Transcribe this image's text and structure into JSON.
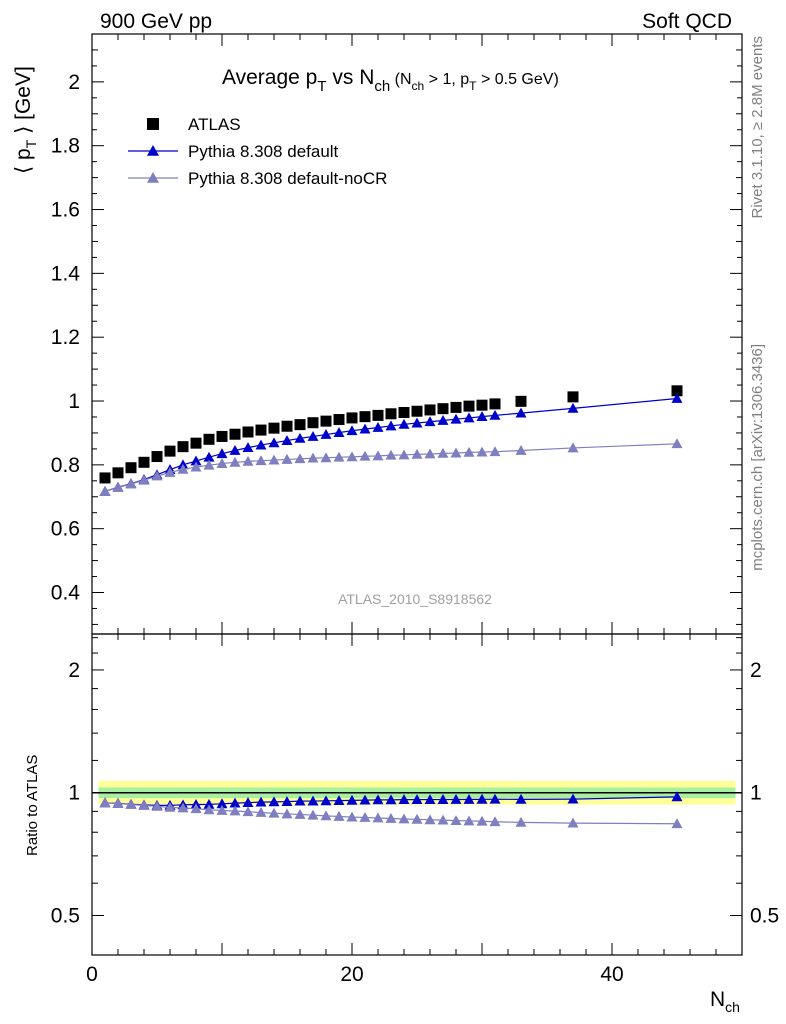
{
  "header": {
    "left": "900 GeV pp",
    "right": "Soft QCD"
  },
  "side_labels": {
    "upper": "Rivet 3.1.10, ≥ 2.8M events",
    "lower": "mcplots.cern.ch [arXiv:1306.3436]"
  },
  "chart_data": {
    "type": "scatter",
    "title": {
      "main_a": "Average p",
      "main_sub1": "T",
      "main_b": " vs N",
      "main_sub2": "ch",
      "cut_a": " (N",
      "cut_sub1": "ch",
      "cut_b": " > 1, p",
      "cut_sub2": "T",
      "cut_c": " > 0.5 GeV)"
    },
    "ylabel_main": {
      "a": "⟨ p",
      "sub": "T",
      "b": " ⟩  [GeV]"
    },
    "ylabel_ratio": "Ratio to ATLAS",
    "xlabel": {
      "a": "N",
      "sub": "ch"
    },
    "watermark": "ATLAS_2010_S8918562",
    "xlim": [
      0,
      50
    ],
    "ylim_main": [
      0.27,
      2.15
    ],
    "ylim_ratio": [
      0.4,
      2.45
    ],
    "ratio_log_scale": true,
    "x_ticks": [
      "0",
      "20",
      "40"
    ],
    "y_ticks_main": [
      "0.4",
      "0.6",
      "0.8",
      "1",
      "1.2",
      "1.4",
      "1.6",
      "1.8",
      "2"
    ],
    "y_ticks_ratio": [
      "0.5",
      "1",
      "2"
    ],
    "legend_position": "top-left",
    "series": [
      {
        "name": "ATLAS",
        "color": "#000000",
        "marker": "square",
        "x": [
          1,
          2,
          3,
          4,
          5,
          6,
          7,
          8,
          9,
          10,
          11,
          12,
          13,
          14,
          15,
          16,
          17,
          18,
          19,
          20,
          21,
          22,
          23,
          24,
          25,
          26,
          27,
          28,
          29,
          30,
          31,
          33,
          37,
          45
        ],
        "y": [
          0.759,
          0.775,
          0.791,
          0.808,
          0.826,
          0.843,
          0.857,
          0.868,
          0.88,
          0.889,
          0.896,
          0.903,
          0.909,
          0.915,
          0.921,
          0.926,
          0.932,
          0.937,
          0.942,
          0.947,
          0.951,
          0.955,
          0.96,
          0.964,
          0.968,
          0.972,
          0.976,
          0.98,
          0.984,
          0.987,
          0.991,
          0.999,
          1.013,
          1.032
        ]
      },
      {
        "name": "Pythia 8.308 default",
        "color": "#0000cc",
        "marker": "triangle",
        "x": [
          1,
          2,
          3,
          4,
          5,
          6,
          7,
          8,
          9,
          10,
          11,
          12,
          13,
          14,
          15,
          16,
          17,
          18,
          19,
          20,
          21,
          22,
          23,
          24,
          25,
          26,
          27,
          28,
          29,
          30,
          31,
          33,
          37,
          45
        ],
        "y": [
          0.717,
          0.73,
          0.741,
          0.754,
          0.769,
          0.785,
          0.8,
          0.812,
          0.824,
          0.835,
          0.845,
          0.854,
          0.862,
          0.869,
          0.876,
          0.883,
          0.889,
          0.895,
          0.901,
          0.907,
          0.912,
          0.917,
          0.922,
          0.927,
          0.931,
          0.935,
          0.939,
          0.943,
          0.947,
          0.951,
          0.955,
          0.962,
          0.977,
          1.008
        ]
      },
      {
        "name": "Pythia 8.308 default-noCR",
        "color": "#7f7fbf",
        "marker": "triangle",
        "x": [
          1,
          2,
          3,
          4,
          5,
          6,
          7,
          8,
          9,
          10,
          11,
          12,
          13,
          14,
          15,
          16,
          17,
          18,
          19,
          20,
          21,
          22,
          23,
          24,
          25,
          26,
          27,
          28,
          29,
          30,
          31,
          33,
          37,
          45
        ],
        "y": [
          0.717,
          0.729,
          0.74,
          0.752,
          0.765,
          0.776,
          0.786,
          0.793,
          0.799,
          0.804,
          0.808,
          0.811,
          0.813,
          0.815,
          0.817,
          0.819,
          0.821,
          0.822,
          0.824,
          0.825,
          0.827,
          0.828,
          0.83,
          0.831,
          0.833,
          0.834,
          0.836,
          0.837,
          0.839,
          0.84,
          0.841,
          0.845,
          0.853,
          0.866
        ]
      }
    ]
  }
}
